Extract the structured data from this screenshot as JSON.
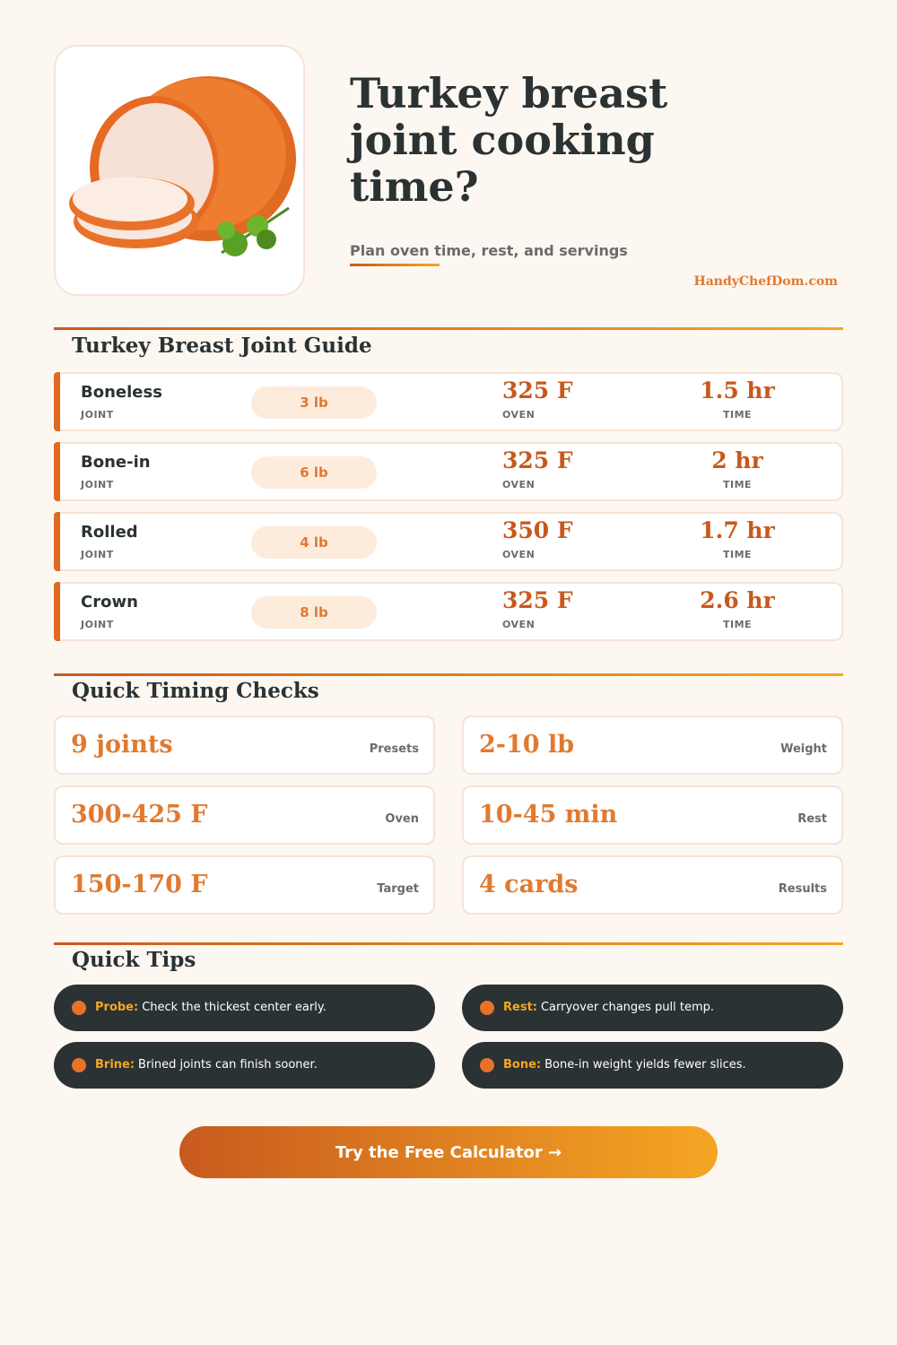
{
  "header": {
    "title": "Turkey breast joint cooking time?",
    "subtitle": "Plan oven time, rest, and servings",
    "site": "HandyChefDom.com"
  },
  "guide": {
    "title": "Turkey Breast Joint Guide",
    "rows": [
      {
        "name": "Boneless",
        "name_label": "JOINT",
        "weight": "3 lb",
        "oven": "325 F",
        "oven_label": "OVEN",
        "time": "1.5 hr",
        "time_label": "TIME"
      },
      {
        "name": "Bone-in",
        "name_label": "JOINT",
        "weight": "6 lb",
        "oven": "325 F",
        "oven_label": "OVEN",
        "time": "2 hr",
        "time_label": "TIME"
      },
      {
        "name": "Rolled",
        "name_label": "JOINT",
        "weight": "4 lb",
        "oven": "350 F",
        "oven_label": "OVEN",
        "time": "1.7 hr",
        "time_label": "TIME"
      },
      {
        "name": "Crown",
        "name_label": "JOINT",
        "weight": "8 lb",
        "oven": "325 F",
        "oven_label": "OVEN",
        "time": "2.6 hr",
        "time_label": "TIME"
      }
    ]
  },
  "checks": {
    "title": "Quick Timing Checks",
    "items": [
      {
        "value": "9 joints",
        "label": "Presets"
      },
      {
        "value": "2-10 lb",
        "label": "Weight"
      },
      {
        "value": "300-425 F",
        "label": "Oven"
      },
      {
        "value": "10-45 min",
        "label": "Rest"
      },
      {
        "value": "150-170 F",
        "label": "Target"
      },
      {
        "value": "4 cards",
        "label": "Results"
      }
    ]
  },
  "tips": {
    "title": "Quick Tips",
    "items": [
      {
        "key": "Probe:",
        "text": "Check the thickest center early."
      },
      {
        "key": "Rest:",
        "text": "Carryover changes pull temp."
      },
      {
        "key": "Brine:",
        "text": "Brined joints can finish sooner."
      },
      {
        "key": "Bone:",
        "text": "Bone-in weight yields fewer slices."
      }
    ]
  },
  "cta": {
    "label": "Try the Free Calculator →"
  }
}
